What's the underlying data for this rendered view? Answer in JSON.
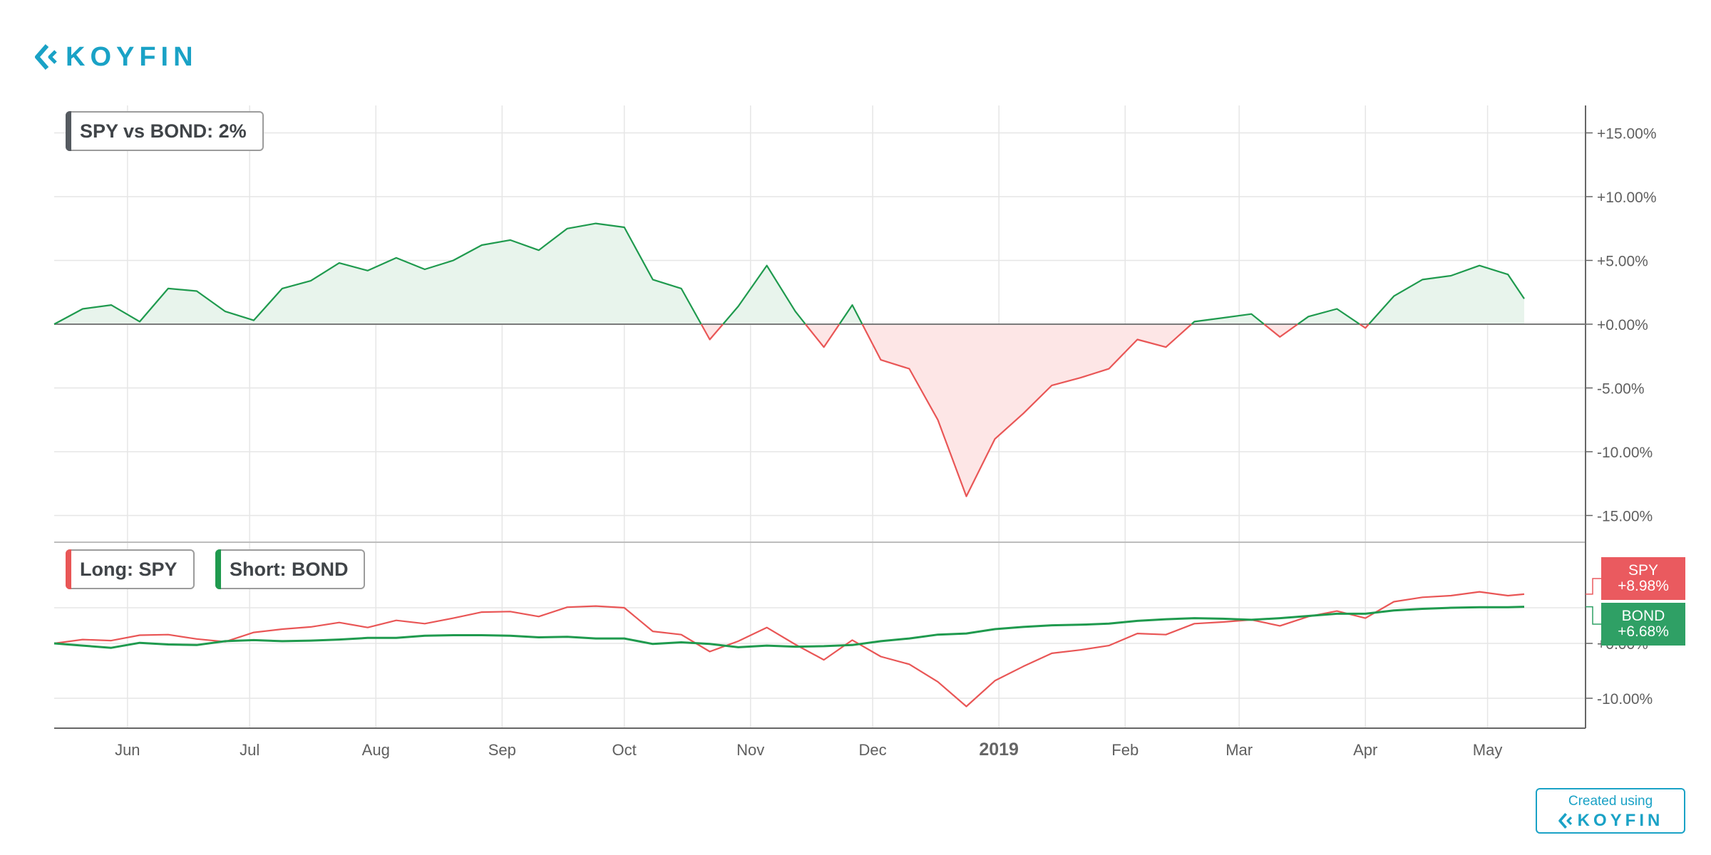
{
  "brand": {
    "logo_text": "KOYFIN",
    "color": "#1aa2c6",
    "logo_icon": "koyfin-chevron-icon"
  },
  "legend": {
    "top": "SPY vs BOND: 2%",
    "long": "Long: SPY",
    "short": "Short: BOND"
  },
  "tags": {
    "spy": {
      "name": "SPY",
      "value": "+8.98%"
    },
    "bond": {
      "name": "BOND",
      "value": "+6.68%"
    }
  },
  "footer": {
    "created_label": "Created using",
    "logo_text": "KOYFIN"
  },
  "colors": {
    "spy": "#e95656",
    "bond": "#1f9a4e",
    "pos_fill": "#e8f4ec",
    "neg_fill": "#fde6e6",
    "tag_red": "#ea5a5f",
    "tag_green": "#2fa065",
    "grid": "#e6e6e6",
    "axis_text": "#5f5f5f"
  },
  "chart_data": [
    {
      "type": "area",
      "title": "SPY vs BOND: 2%",
      "x": [
        "2018-05-14",
        "2018-05-21",
        "2018-05-28",
        "2018-06-04",
        "2018-06-11",
        "2018-06-18",
        "2018-06-25",
        "2018-07-02",
        "2018-07-09",
        "2018-07-16",
        "2018-07-23",
        "2018-07-30",
        "2018-08-06",
        "2018-08-13",
        "2018-08-20",
        "2018-08-27",
        "2018-09-03",
        "2018-09-10",
        "2018-09-17",
        "2018-09-24",
        "2018-10-01",
        "2018-10-08",
        "2018-10-15",
        "2018-10-22",
        "2018-10-29",
        "2018-11-05",
        "2018-11-12",
        "2018-11-19",
        "2018-11-26",
        "2018-12-03",
        "2018-12-10",
        "2018-12-17",
        "2018-12-24",
        "2018-12-31",
        "2019-01-07",
        "2019-01-14",
        "2019-01-21",
        "2019-01-28",
        "2019-02-04",
        "2019-02-11",
        "2019-02-18",
        "2019-02-25",
        "2019-03-04",
        "2019-03-11",
        "2019-03-18",
        "2019-03-25",
        "2019-04-01",
        "2019-04-08",
        "2019-04-15",
        "2019-04-22",
        "2019-04-29",
        "2019-05-06",
        "2019-05-10"
      ],
      "series": [
        {
          "values": [
            0.0,
            1.2,
            1.5,
            0.2,
            2.8,
            2.6,
            1.0,
            0.3,
            2.8,
            3.4,
            4.8,
            4.2,
            5.2,
            4.3,
            5.0,
            6.2,
            6.6,
            5.8,
            7.5,
            7.9,
            7.6,
            3.5,
            2.8,
            -1.2,
            1.4,
            4.6,
            1.0,
            -1.8,
            1.5,
            -2.8,
            -3.5,
            -7.5,
            -13.5,
            -9.0,
            -7.0,
            -4.8,
            -4.2,
            -3.5,
            -1.2,
            -1.8,
            0.2,
            0.5,
            0.8,
            -1.0,
            0.6,
            1.2,
            -0.3,
            2.2,
            3.5,
            3.8,
            4.6,
            3.9,
            2.0
          ]
        }
      ],
      "ylim": [
        -15,
        15
      ],
      "yticks": [
        "+15.00%",
        "+10.00%",
        "+5.00%",
        "+0.00%",
        "-5.00%",
        "-10.00%",
        "-15.00%"
      ]
    },
    {
      "type": "line",
      "x": [
        "2018-05-14",
        "2018-05-21",
        "2018-05-28",
        "2018-06-04",
        "2018-06-11",
        "2018-06-18",
        "2018-06-25",
        "2018-07-02",
        "2018-07-09",
        "2018-07-16",
        "2018-07-23",
        "2018-07-30",
        "2018-08-06",
        "2018-08-13",
        "2018-08-20",
        "2018-08-27",
        "2018-09-03",
        "2018-09-10",
        "2018-09-17",
        "2018-09-24",
        "2018-10-01",
        "2018-10-08",
        "2018-10-15",
        "2018-10-22",
        "2018-10-29",
        "2018-11-05",
        "2018-11-12",
        "2018-11-19",
        "2018-11-26",
        "2018-12-03",
        "2018-12-10",
        "2018-12-17",
        "2018-12-24",
        "2018-12-31",
        "2019-01-07",
        "2019-01-14",
        "2019-01-21",
        "2019-01-28",
        "2019-02-04",
        "2019-02-11",
        "2019-02-18",
        "2019-02-25",
        "2019-03-04",
        "2019-03-11",
        "2019-03-18",
        "2019-03-25",
        "2019-04-01",
        "2019-04-08",
        "2019-04-15",
        "2019-04-22",
        "2019-04-29",
        "2019-05-06",
        "2019-05-10"
      ],
      "series": [
        {
          "name": "SPY",
          "values": [
            0.0,
            0.7,
            0.5,
            1.5,
            1.6,
            0.8,
            0.3,
            2.0,
            2.6,
            3.0,
            3.8,
            2.9,
            4.2,
            3.6,
            4.6,
            5.7,
            5.8,
            4.9,
            6.6,
            6.8,
            6.5,
            2.2,
            1.6,
            -1.5,
            0.4,
            2.9,
            -0.2,
            -3.0,
            0.6,
            -2.4,
            -3.8,
            -7.0,
            -11.5,
            -6.8,
            -4.2,
            -1.8,
            -1.2,
            -0.4,
            1.8,
            1.6,
            3.6,
            3.9,
            4.3,
            3.2,
            4.9,
            5.9,
            4.6,
            7.6,
            8.4,
            8.7,
            9.4,
            8.7,
            8.98
          ]
        },
        {
          "name": "BOND",
          "values": [
            0.0,
            -0.4,
            -0.8,
            0.1,
            -0.2,
            -0.3,
            0.4,
            0.6,
            0.4,
            0.5,
            0.7,
            1.0,
            1.0,
            1.4,
            1.5,
            1.5,
            1.4,
            1.1,
            1.2,
            0.9,
            0.9,
            -0.1,
            0.2,
            -0.1,
            -0.7,
            -0.4,
            -0.6,
            -0.5,
            -0.3,
            0.4,
            0.9,
            1.6,
            1.8,
            2.6,
            3.0,
            3.3,
            3.4,
            3.6,
            4.1,
            4.4,
            4.6,
            4.5,
            4.3,
            4.6,
            5.0,
            5.4,
            5.4,
            6.0,
            6.3,
            6.5,
            6.6,
            6.6,
            6.68
          ]
        }
      ],
      "yticks": [
        "+0.00%",
        "-10.00%"
      ],
      "ylim": [
        -12.5,
        13.5
      ]
    }
  ],
  "xaxis": {
    "labels": [
      {
        "text": "Jun",
        "date": "2018-06-01"
      },
      {
        "text": "Jul",
        "date": "2018-07-01"
      },
      {
        "text": "Aug",
        "date": "2018-08-01"
      },
      {
        "text": "Sep",
        "date": "2018-09-01"
      },
      {
        "text": "Oct",
        "date": "2018-10-01"
      },
      {
        "text": "Nov",
        "date": "2018-11-01"
      },
      {
        "text": "Dec",
        "date": "2018-12-01"
      },
      {
        "text": "2019",
        "date": "2019-01-01"
      },
      {
        "text": "Feb",
        "date": "2019-02-01"
      },
      {
        "text": "Mar",
        "date": "2019-03-01"
      },
      {
        "text": "Apr",
        "date": "2019-04-01"
      },
      {
        "text": "May",
        "date": "2019-05-01"
      }
    ],
    "range": [
      "2018-05-14",
      "2019-05-10"
    ]
  }
}
